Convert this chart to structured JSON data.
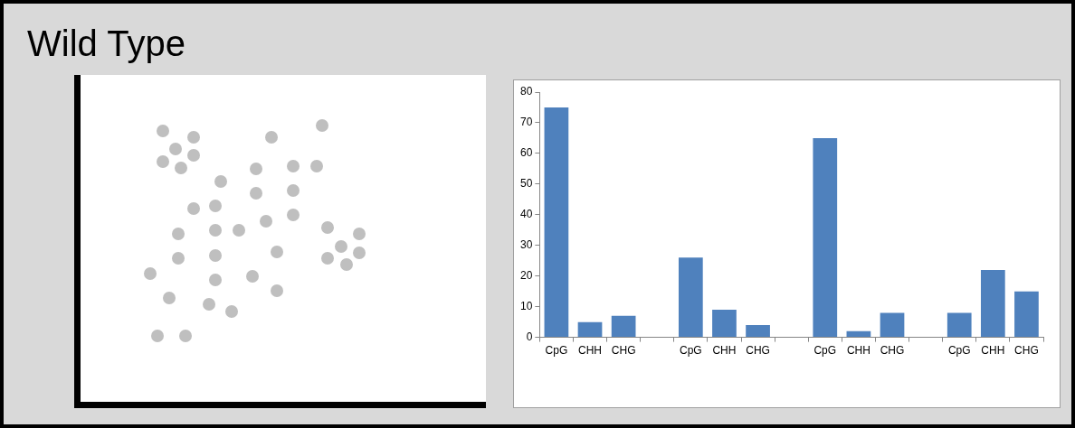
{
  "chart_data": {
    "type": "bar",
    "title": "Wild Type",
    "categories": [
      "CpG",
      "CHH",
      "CHG",
      null,
      "CpG",
      "CHH",
      "CHG",
      null,
      "CpG",
      "CHH",
      "CHG",
      null,
      "CpG",
      "CHH",
      "CHG"
    ],
    "values": [
      75,
      5,
      7,
      null,
      26,
      9,
      4,
      null,
      65,
      2,
      8,
      null,
      8,
      22,
      15
    ],
    "color": "#4f81bd",
    "ylim": [
      0,
      80
    ],
    "yticks": [
      0,
      10,
      20,
      30,
      40,
      50,
      60,
      70,
      80
    ],
    "grid": false,
    "legend": false
  }
}
